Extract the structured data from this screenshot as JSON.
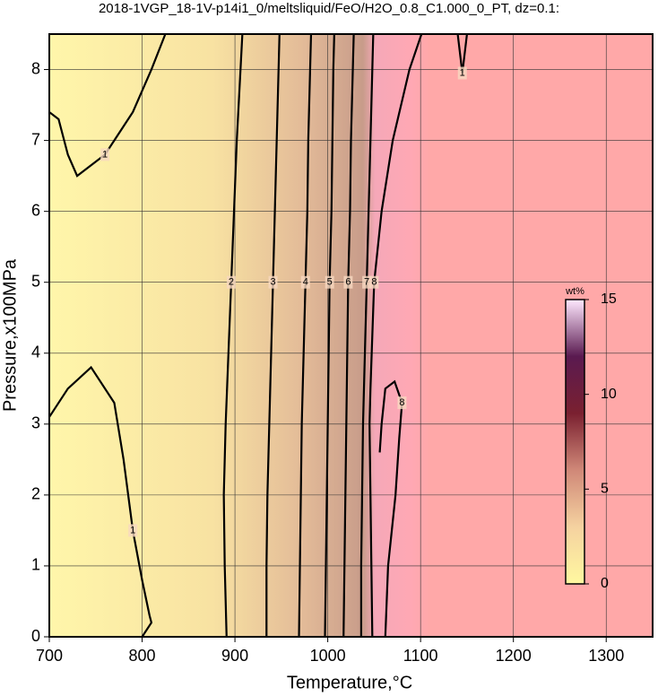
{
  "chart_data": {
    "type": "contour",
    "title": "2018-1VGP_18-1V-p14i1_0/meltsliquid/FeO/H2O_0.8_C1.000_0_PT, dz=0.1:",
    "xlabel": "Temperature,°C",
    "ylabel": "Pressure,x100MPa",
    "xlim": [
      700,
      1350
    ],
    "ylim": [
      0,
      8.5
    ],
    "xticks": [
      700,
      800,
      900,
      1000,
      1100,
      1200,
      1300
    ],
    "yticks": [
      0,
      1,
      2,
      3,
      4,
      5,
      6,
      7,
      8
    ],
    "grid": true,
    "contours": [
      {
        "level": 1,
        "x": [
          700,
          720,
          745,
          770,
          780,
          790,
          800,
          808,
          810,
          800
        ],
        "y": [
          3.1,
          3.5,
          3.8,
          3.3,
          2.5,
          1.5,
          0.8,
          0.3,
          0.2,
          0
        ]
      },
      {
        "level": 1,
        "x": [
          700,
          710,
          720,
          730,
          760,
          790,
          810,
          825
        ],
        "y": [
          7.4,
          7.3,
          6.8,
          6.5,
          6.8,
          7.4,
          8,
          8.5
        ]
      },
      {
        "level": 1,
        "x": [
          1140,
          1145,
          1150
        ],
        "y": [
          8.5,
          7.95,
          8.5
        ]
      },
      {
        "level": 2,
        "x": [
          891,
          889,
          888,
          890,
          893,
          896,
          899,
          902,
          906,
          908
        ],
        "y": [
          0,
          1,
          2,
          3,
          4,
          5,
          6,
          7,
          8,
          8.5
        ]
      },
      {
        "level": 3,
        "x": [
          934,
          934,
          935,
          937,
          939,
          941,
          943,
          945,
          947,
          948
        ],
        "y": [
          0,
          1,
          2,
          3,
          4,
          5,
          6,
          7,
          8,
          8.5
        ]
      },
      {
        "level": 4,
        "x": [
          969,
          970,
          971,
          972,
          974,
          976,
          978,
          979,
          981,
          982
        ],
        "y": [
          0,
          1,
          2,
          3,
          4,
          5,
          6,
          7,
          8,
          8.5
        ]
      },
      {
        "level": 5,
        "x": [
          997,
          998,
          999,
          1000,
          1001,
          1002,
          1004,
          1005,
          1006,
          1007
        ],
        "y": [
          0,
          1,
          2,
          3,
          4,
          5,
          6,
          7,
          8,
          8.5
        ]
      },
      {
        "level": 6,
        "x": [
          1017,
          1018,
          1019,
          1020,
          1021,
          1022,
          1024,
          1025,
          1027,
          1028
        ],
        "y": [
          0,
          1,
          2,
          3,
          4,
          5,
          6,
          7,
          8,
          8.5
        ]
      },
      {
        "level": 7,
        "x": [
          1036,
          1036,
          1037,
          1038,
          1040,
          1042,
          1044,
          1046,
          1048,
          1049
        ],
        "y": [
          0,
          1,
          2,
          3,
          4,
          5,
          6,
          7,
          8,
          8.5
        ]
      },
      {
        "level": 8,
        "x": [
          1048,
          1047,
          1046,
          1045,
          1046,
          1050,
          1058,
          1070,
          1088,
          1101
        ],
        "y": [
          0,
          1,
          2,
          3,
          3.5,
          5,
          6,
          7,
          8,
          8.5
        ]
      },
      {
        "level": 8,
        "x": [
          1062,
          1065,
          1073,
          1077,
          1080,
          1072,
          1062,
          1058,
          1056
        ],
        "y": [
          0,
          1,
          2,
          2.8,
          3.3,
          3.6,
          3.5,
          3.0,
          2.6
        ]
      }
    ],
    "colorbar": {
      "label": "wt%",
      "lim": [
        0,
        15
      ],
      "ticks": [
        0,
        5,
        10,
        15
      ],
      "colors": [
        "#fff8a0",
        "#f5d2a0",
        "#d08878",
        "#7a2030",
        "#5a1a50",
        "#ffe8ff"
      ]
    }
  }
}
